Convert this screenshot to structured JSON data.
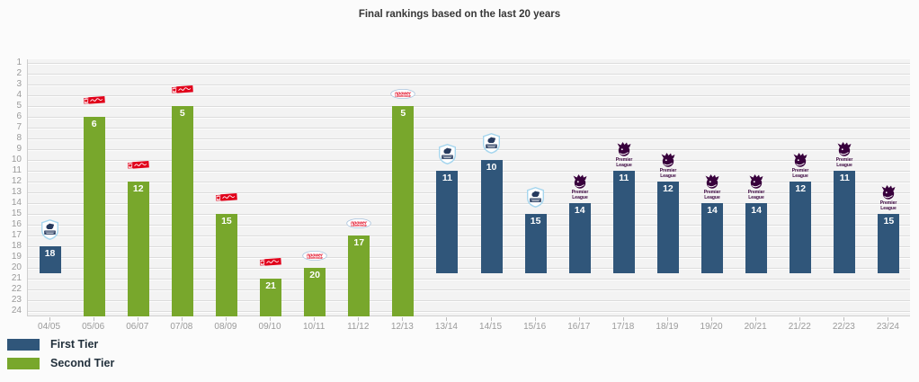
{
  "title": "Final rankings based on the last 20 years",
  "legend": {
    "items": [
      {
        "key": "first",
        "label": "First Tier",
        "color": "#30567a"
      },
      {
        "key": "second",
        "label": "Second Tier",
        "color": "#78a72c"
      }
    ]
  },
  "chart_data": {
    "type": "bar",
    "title": "Final rankings based on the last 20 years",
    "orientation": "vertical",
    "y_inverted": true,
    "ylim": [
      1,
      24
    ],
    "yticks": [
      1,
      2,
      3,
      4,
      5,
      6,
      7,
      8,
      9,
      10,
      11,
      12,
      13,
      14,
      15,
      16,
      17,
      18,
      19,
      20,
      21,
      22,
      23,
      24
    ],
    "grid": true,
    "legend_position": "bottom-left",
    "categories": [
      "04/05",
      "05/06",
      "06/07",
      "07/08",
      "08/09",
      "09/10",
      "10/11",
      "11/12",
      "12/13",
      "13/14",
      "14/15",
      "15/16",
      "16/17",
      "17/18",
      "18/19",
      "19/20",
      "20/21",
      "21/22",
      "22/23",
      "23/24"
    ],
    "series": [
      {
        "name": "Final ranking",
        "values": [
          18,
          6,
          12,
          5,
          15,
          21,
          20,
          17,
          5,
          11,
          10,
          15,
          14,
          11,
          12,
          14,
          14,
          12,
          11,
          15
        ]
      }
    ],
    "tier_by_season": [
      "first",
      "second",
      "second",
      "second",
      "second",
      "second",
      "second",
      "second",
      "second",
      "first",
      "first",
      "first",
      "first",
      "first",
      "first",
      "first",
      "first",
      "first",
      "first",
      "first"
    ],
    "tier_colors": {
      "first": "#30567a",
      "second": "#78a72c"
    },
    "bar_bottom_rank": {
      "first": 20,
      "second": 24
    },
    "logo_by_season": [
      "barclays-premier-league",
      "coca-cola-championship",
      "coca-cola-championship",
      "coca-cola-championship",
      "coca-cola-championship",
      "coca-cola-championship",
      "npower-championship",
      "npower-championship",
      "npower-championship",
      "barclays-premier-league",
      "barclays-premier-league",
      "barclays-premier-league",
      "premier-league",
      "premier-league",
      "premier-league",
      "premier-league",
      "premier-league",
      "premier-league",
      "premier-league",
      "premier-league"
    ],
    "logo_labels": {
      "barclays-premier-league": "Barclays Premier League",
      "coca-cola-championship": "Coca-Cola Championship",
      "npower-championship": "npower Championship",
      "premier-league": "Premier League"
    },
    "premier_league_logo_text": "Premier League",
    "npower_logo_text": "npower",
    "npower_logo_subtext": "CHAMPIONSHIP"
  }
}
